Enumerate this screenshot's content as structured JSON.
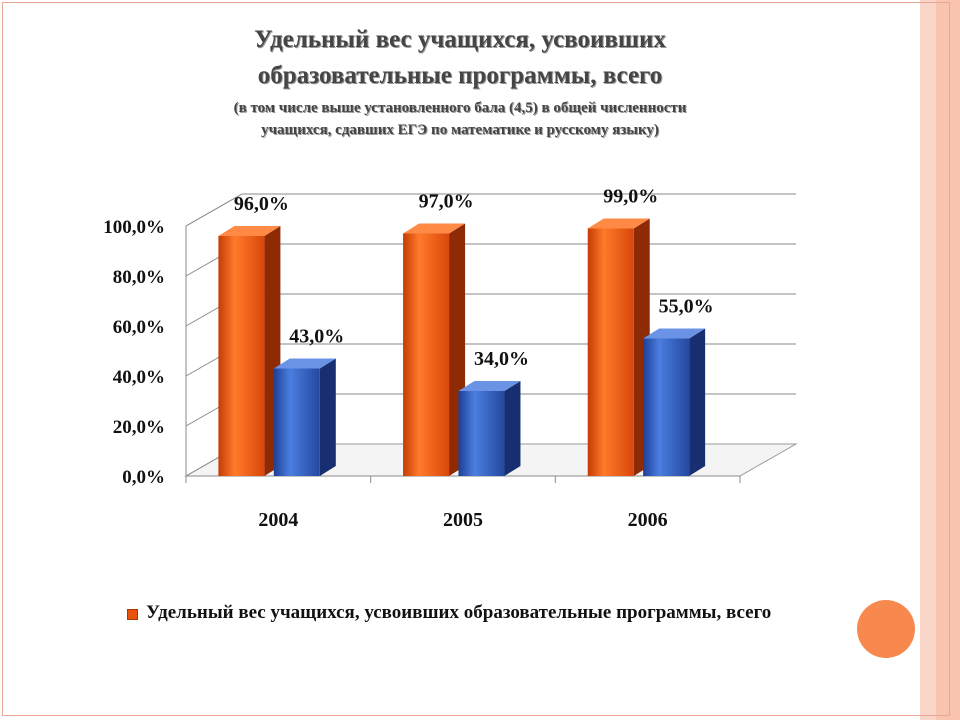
{
  "slide": {
    "title_line1": "Удельный вес учащихся, усвоивших",
    "title_line2": "образовательные программы, всего",
    "subtitle_line1": "(в том числе выше установленного бала (4,5) в общей численности",
    "subtitle_line2": "учащихся, сдавших ЕГЭ по математике и русскому языку)",
    "legend_label": "Удельный вес учащихся, усвоивших образовательные программы, всего"
  },
  "colors": {
    "series_1": "#e8520c",
    "series_2": "#2f5fc4",
    "accent_circle": "#f7894e"
  },
  "chart_data": {
    "type": "bar",
    "categories": [
      "2004",
      "2005",
      "2006"
    ],
    "series": [
      {
        "name": "Удельный вес учащихся, усвоивших образовательные программы, всего",
        "values": [
          96.0,
          97.0,
          99.0
        ]
      },
      {
        "values": [
          43.0,
          34.0,
          55.0
        ]
      }
    ],
    "data_labels": [
      [
        "96,0%",
        "97,0%",
        "99,0%"
      ],
      [
        "43,0%",
        "34,0%",
        "55,0%"
      ]
    ],
    "y_ticks": [
      "0,0%",
      "20,0%",
      "40,0%",
      "60,0%",
      "80,0%",
      "100,0%"
    ],
    "ylim": [
      0,
      100
    ],
    "grid": true,
    "legend": "bottom",
    "style": "3d"
  }
}
